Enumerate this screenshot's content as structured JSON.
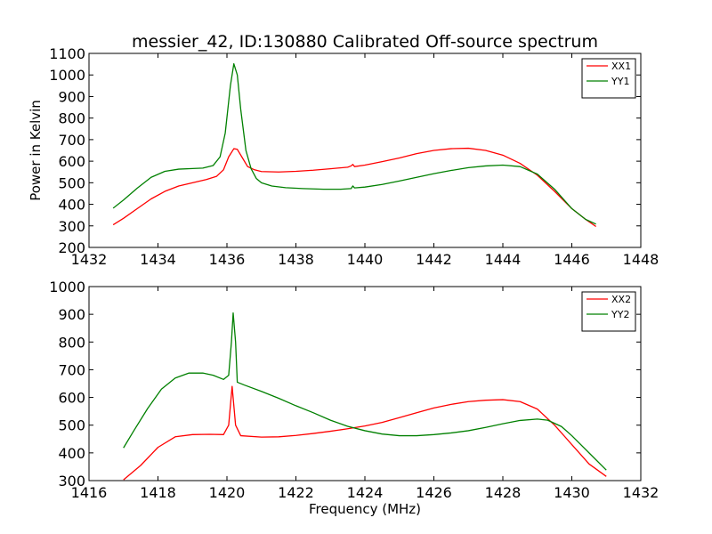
{
  "figure": {
    "title": "messier_42, ID:130880 Calibrated Off-source spectrum"
  },
  "chart_data": [
    {
      "type": "line",
      "title": "messier_42, ID:130880 Calibrated Off-source spectrum",
      "xlabel": "",
      "ylabel": "Power in Kelvin",
      "xlim": [
        1432,
        1448
      ],
      "ylim": [
        200,
        1100
      ],
      "xticks": [
        1432,
        1434,
        1436,
        1438,
        1440,
        1442,
        1444,
        1446,
        1448
      ],
      "yticks": [
        200,
        300,
        400,
        500,
        600,
        700,
        800,
        900,
        1000,
        1100
      ],
      "grid": false,
      "legend": "top-right",
      "series": [
        {
          "name": "XX1",
          "color": "#ff0000",
          "x": [
            1432.7,
            1433.0,
            1433.4,
            1433.8,
            1434.2,
            1434.6,
            1435.0,
            1435.4,
            1435.7,
            1435.9,
            1436.05,
            1436.2,
            1436.3,
            1436.45,
            1436.6,
            1436.8,
            1437.0,
            1437.5,
            1438.0,
            1438.5,
            1439.0,
            1439.5,
            1439.6,
            1439.65,
            1439.7,
            1440.0,
            1440.5,
            1441.0,
            1441.5,
            1442.0,
            1442.5,
            1443.0,
            1443.5,
            1444.0,
            1444.5,
            1445.0,
            1445.5,
            1446.0,
            1446.4,
            1446.7
          ],
          "y": [
            305,
            335,
            380,
            425,
            460,
            485,
            500,
            515,
            530,
            560,
            620,
            658,
            655,
            615,
            575,
            560,
            552,
            550,
            553,
            558,
            565,
            572,
            578,
            585,
            575,
            582,
            598,
            615,
            635,
            650,
            658,
            660,
            650,
            628,
            590,
            535,
            460,
            380,
            330,
            297
          ]
        },
        {
          "name": "YY1",
          "color": "#008000",
          "x": [
            1432.7,
            1433.0,
            1433.4,
            1433.8,
            1434.2,
            1434.6,
            1435.0,
            1435.3,
            1435.6,
            1435.8,
            1435.95,
            1436.1,
            1436.2,
            1436.3,
            1436.4,
            1436.55,
            1436.7,
            1436.85,
            1437.0,
            1437.3,
            1437.7,
            1438.2,
            1438.8,
            1439.3,
            1439.6,
            1439.65,
            1439.7,
            1440.0,
            1440.5,
            1441.0,
            1441.5,
            1442.0,
            1442.5,
            1443.0,
            1443.5,
            1444.0,
            1444.5,
            1445.0,
            1445.5,
            1446.0,
            1446.4,
            1446.7
          ],
          "y": [
            382,
            420,
            475,
            525,
            553,
            563,
            566,
            568,
            580,
            620,
            730,
            950,
            1052,
            1000,
            840,
            650,
            565,
            520,
            500,
            485,
            477,
            473,
            470,
            470,
            473,
            485,
            476,
            480,
            492,
            508,
            525,
            542,
            557,
            570,
            578,
            582,
            575,
            540,
            470,
            380,
            330,
            308
          ]
        }
      ]
    },
    {
      "type": "line",
      "title": "",
      "xlabel": "Frequency (MHz)",
      "ylabel": "",
      "xlim": [
        1416,
        1432
      ],
      "ylim": [
        300,
        1000
      ],
      "xticks": [
        1416,
        1418,
        1420,
        1422,
        1424,
        1426,
        1428,
        1430,
        1432
      ],
      "yticks": [
        300,
        400,
        500,
        600,
        700,
        800,
        900,
        1000
      ],
      "grid": false,
      "legend": "top-right",
      "series": [
        {
          "name": "XX2",
          "color": "#ff0000",
          "x": [
            1417.0,
            1417.5,
            1418.0,
            1418.5,
            1419.0,
            1419.5,
            1419.9,
            1420.05,
            1420.15,
            1420.25,
            1420.4,
            1421.0,
            1421.5,
            1422.0,
            1422.5,
            1423.0,
            1423.5,
            1424.0,
            1424.5,
            1425.0,
            1425.5,
            1426.0,
            1426.5,
            1427.0,
            1427.5,
            1428.0,
            1428.5,
            1429.0,
            1429.5,
            1430.0,
            1430.5,
            1431.0
          ],
          "y": [
            303,
            355,
            420,
            458,
            466,
            467,
            466,
            500,
            640,
            500,
            462,
            457,
            458,
            463,
            470,
            478,
            487,
            497,
            510,
            527,
            545,
            562,
            575,
            585,
            590,
            592,
            585,
            558,
            500,
            430,
            360,
            315
          ]
        },
        {
          "name": "YY2",
          "color": "#008000",
          "x": [
            1417.0,
            1417.3,
            1417.7,
            1418.1,
            1418.5,
            1418.9,
            1419.3,
            1419.6,
            1419.9,
            1420.05,
            1420.13,
            1420.18,
            1420.25,
            1420.3,
            1420.5,
            1421.0,
            1421.5,
            1422.0,
            1422.5,
            1423.0,
            1423.5,
            1424.0,
            1424.5,
            1425.0,
            1425.5,
            1426.0,
            1426.5,
            1427.0,
            1427.5,
            1428.0,
            1428.5,
            1429.0,
            1429.3,
            1429.7,
            1430.0,
            1430.5,
            1431.0
          ],
          "y": [
            418,
            480,
            560,
            630,
            670,
            688,
            688,
            680,
            665,
            680,
            800,
            905,
            800,
            655,
            645,
            622,
            597,
            570,
            545,
            518,
            496,
            480,
            468,
            462,
            462,
            466,
            472,
            480,
            492,
            505,
            517,
            522,
            518,
            495,
            462,
            400,
            338
          ]
        }
      ]
    }
  ]
}
